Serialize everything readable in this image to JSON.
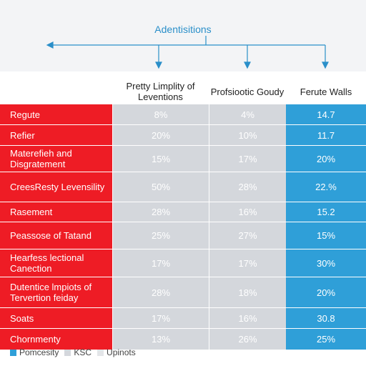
{
  "chart_data": {
    "type": "table",
    "title": "Adentisitions",
    "columns": [
      "Pretty Limplity of Leventions",
      "Profsiootic Goudy",
      "Ferute Walls"
    ],
    "rows": [
      {
        "label": "Regute",
        "values": [
          "8%",
          "4%",
          "14.7"
        ]
      },
      {
        "label": "Refier",
        "values": [
          "20%",
          "10%",
          "11.7"
        ]
      },
      {
        "label": "Materefieh and Disgratement",
        "values": [
          "15%",
          "17%",
          "20%"
        ]
      },
      {
        "label": "CreesResty Levensility",
        "values": [
          "50%",
          "28%",
          "22.%"
        ]
      },
      {
        "label": "Rasement",
        "values": [
          "28%",
          "16%",
          "15.2"
        ]
      },
      {
        "label": "Peassose of Tatand",
        "values": [
          "25%",
          "27%",
          "15%"
        ]
      },
      {
        "label": "Hearfess lectional Canection",
        "values": [
          "17%",
          "17%",
          "30%"
        ]
      },
      {
        "label": "Dutentice lmpiots of Tervertion feiday",
        "values": [
          "28%",
          "18%",
          "20%"
        ]
      },
      {
        "label": "Soats",
        "values": [
          "17%",
          "16%",
          "30.8"
        ]
      },
      {
        "label": "Chornmenty",
        "values": [
          "13%",
          "26%",
          "25%"
        ]
      }
    ],
    "legend": [
      {
        "label": "Pomcesity",
        "color": "#2f9fd8"
      },
      {
        "label": "KSC",
        "color": "#d4d7dc"
      },
      {
        "label": "Upinots",
        "color": "#e3e5e8"
      }
    ],
    "colors": {
      "label_col": "#ee1c25",
      "gray_col": "#d4d7dc",
      "blue_col": "#2f9fd8",
      "title": "#2a8fc9"
    }
  }
}
